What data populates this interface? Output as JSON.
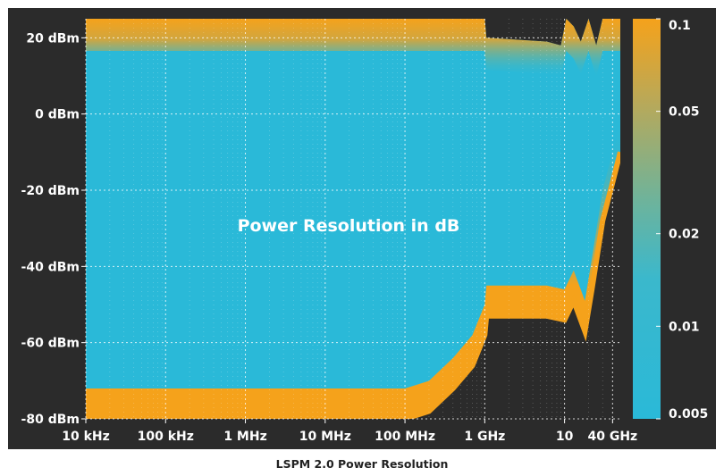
{
  "chart_data": {
    "type": "heatmap",
    "title": "Power Resolution in dB",
    "x_scale": "log",
    "x_unit": "Hz",
    "x_range_hz": [
      10000,
      50000000000
    ],
    "x_ticks": [
      {
        "value": 10000,
        "label": "10 kHz"
      },
      {
        "value": 100000,
        "label": "100 kHz"
      },
      {
        "value": 1000000,
        "label": "1 MHz"
      },
      {
        "value": 10000000,
        "label": "10 MHz"
      },
      {
        "value": 100000000,
        "label": "100 MHz"
      },
      {
        "value": 1000000000,
        "label": "1 GHz"
      },
      {
        "value": 10000000000,
        "label": "10"
      },
      {
        "value": 40000000000,
        "label": "40 GHz"
      }
    ],
    "y_unit": "dBm",
    "y_range_dbm": [
      -80,
      25
    ],
    "y_ticks": [
      {
        "value": 20,
        "label": "20 dBm"
      },
      {
        "value": 0,
        "label": "0 dBm"
      },
      {
        "value": -20,
        "label": "-20 dBm"
      },
      {
        "value": -40,
        "label": "-40 dBm"
      },
      {
        "value": -60,
        "label": "-60 dBm"
      },
      {
        "value": -80,
        "label": "-80 dBm"
      }
    ],
    "grid": true,
    "colorbar": {
      "scale": "log",
      "range": [
        0.005,
        0.1
      ],
      "ticks": [
        {
          "value": 0.1,
          "label": "0.1"
        },
        {
          "value": 0.05,
          "label": "0.05"
        },
        {
          "value": 0.02,
          "label": "0.02"
        },
        {
          "value": 0.01,
          "label": "0.01"
        },
        {
          "value": 0.005,
          "label": "0.005"
        }
      ],
      "colors": {
        "low": "#2ab9d8",
        "mid": "#7fb27a",
        "high": "#f5a21b"
      }
    },
    "no_data_color": "#2b2b2b",
    "upper_limit_dbm": [
      [
        10000,
        25
      ],
      [
        1000000000,
        25
      ],
      [
        1050000000,
        20
      ],
      [
        6000000000,
        19
      ],
      [
        9000000000,
        18
      ],
      [
        10500000000,
        25
      ],
      [
        13000000000,
        23
      ],
      [
        16000000000,
        19
      ],
      [
        20000000000,
        25
      ],
      [
        25000000000,
        18
      ],
      [
        30000000000,
        25
      ],
      [
        50000000000,
        25
      ]
    ],
    "lower_limit_dbm": [
      [
        10000,
        -80
      ],
      [
        100000000,
        -80
      ],
      [
        200000000,
        -78
      ],
      [
        400000000,
        -72
      ],
      [
        700000000,
        -66
      ],
      [
        1000000000,
        -58
      ],
      [
        1050000000,
        -53
      ],
      [
        6000000000,
        -53
      ],
      [
        10000000000,
        -54
      ],
      [
        13000000000,
        -49
      ],
      [
        18000000000,
        -57
      ],
      [
        22000000000,
        -46
      ],
      [
        30000000000,
        -28
      ],
      [
        40000000000,
        -18
      ],
      [
        50000000000,
        -10
      ]
    ]
  },
  "caption": "LSPM 2.0 Power Resolution"
}
